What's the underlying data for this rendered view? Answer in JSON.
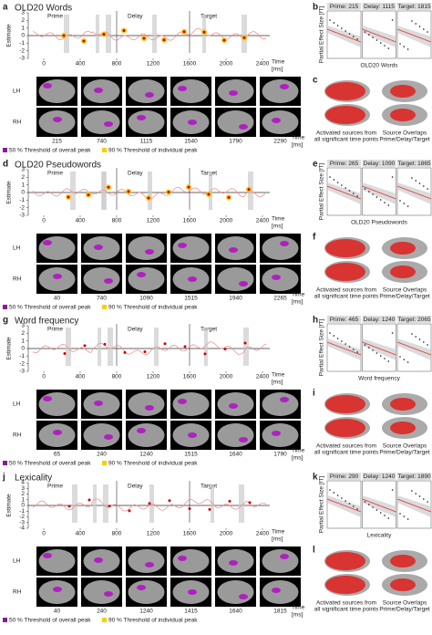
{
  "panels": [
    {
      "letter": "a",
      "title": "OLD20 Words",
      "y_label": "Estimate",
      "yticks": [
        "3",
        "2",
        "1",
        "0",
        "-1",
        "-2",
        "-3"
      ],
      "epochs": [
        "Prime",
        "Delay",
        "Target"
      ],
      "xticks": [
        "0",
        "400",
        "800",
        "1200",
        "1600",
        "2000",
        "2400"
      ],
      "time_label": [
        "Time",
        "[ms]"
      ],
      "hemispheres": [
        "LH",
        "RH"
      ],
      "brain_times": [
        "215",
        "740",
        "1115",
        "1540",
        "1790",
        "2290"
      ],
      "legend": [
        "50 % Threshold of overall peak",
        "90 % Threshold of individual peak"
      ],
      "effect_panel": {
        "letter": "b",
        "headers": [
          "Prime: 215",
          "Delay: 1115",
          "Target: 1815"
        ],
        "y_label": "Partial Effect Size [fT]",
        "x_label": "OLD20 Words"
      },
      "source_panel": {
        "letter": "c",
        "captions": [
          "Activated sources from all significant time points",
          "Source Overlaps Prime/Delay/Target"
        ]
      }
    },
    {
      "letter": "d",
      "title": "OLD20 Pseudowords",
      "y_label": "Estimate",
      "yticks": [
        "3",
        "2",
        "1",
        "0",
        "-1",
        "-2",
        "-3"
      ],
      "epochs": [
        "Prime",
        "Delay",
        "Target"
      ],
      "xticks": [
        "0",
        "400",
        "800",
        "1200",
        "1600",
        "2000",
        "2400"
      ],
      "time_label": [
        "Time",
        "[ms]"
      ],
      "hemispheres": [
        "LH",
        "RH"
      ],
      "brain_times": [
        "40",
        "740",
        "1090",
        "1515",
        "1940",
        "2265"
      ],
      "legend": [
        "50 % Threshold of overall peak",
        "90 % Threshold of individual peak"
      ],
      "effect_panel": {
        "letter": "e",
        "headers": [
          "Prime: 265",
          "Delay: 1090",
          "Target: 1865"
        ],
        "y_label": "Partial Effect Size [fT]",
        "x_label": "OLD20 Pseudowords"
      },
      "source_panel": {
        "letter": "f",
        "captions": [
          "Activated sources from all significant time points",
          "Source Overlaps Prime/Delay/Target"
        ]
      }
    },
    {
      "letter": "g",
      "title": "Word frequency",
      "y_label": "Estimate",
      "yticks": [
        "3",
        "2",
        "1",
        "0",
        "-1",
        "-2",
        "-3"
      ],
      "epochs": [
        "Prime",
        "Delay",
        "Target"
      ],
      "xticks": [
        "0",
        "400",
        "800",
        "1200",
        "1600",
        "2000",
        "2400"
      ],
      "time_label": [
        "Time",
        "[ms]"
      ],
      "hemispheres": [
        "LH",
        "RH"
      ],
      "brain_times": [
        "65",
        "240",
        "1240",
        "1515",
        "1640",
        "1790"
      ],
      "legend": [
        "50 % Threshold of overall peak",
        "90 % Threshold of individual peak"
      ],
      "effect_panel": {
        "letter": "h",
        "headers": [
          "Prime: 465",
          "Delay: 1240",
          "Target: 2065"
        ],
        "y_label": "Partial Effect Size [fT]",
        "x_label": "Word frequency"
      },
      "source_panel": {
        "letter": "i",
        "captions": [
          "Activated sources from all significant time points",
          "Source Overlaps Prime/Delay/Target"
        ]
      }
    },
    {
      "letter": "j",
      "title": "Lexicality",
      "y_label": "Estimate",
      "yticks": [
        "4",
        "3",
        "2",
        "1",
        "0",
        "-1",
        "-2",
        "-3",
        "-4"
      ],
      "epochs": [
        "Prime",
        "Delay",
        "Target"
      ],
      "xticks": [
        "0",
        "400",
        "800",
        "1200",
        "1600",
        "2000",
        "2400"
      ],
      "time_label": [
        "Time",
        "[ms]"
      ],
      "hemispheres": [
        "LH",
        "RH"
      ],
      "brain_times": [
        "40",
        "240",
        "1240",
        "1415",
        "1640",
        "1815"
      ],
      "legend": [
        "50 % Threshold of overall peak",
        "90 % Threshold of individual peak"
      ],
      "effect_panel": {
        "letter": "k",
        "headers": [
          "Prime: 290",
          "Delay: 1240",
          "Target: 1890"
        ],
        "y_label": "Partial Effect Size [fT]",
        "x_label": "Lexicality"
      },
      "source_panel": {
        "letter": "l",
        "captions": [
          "Activated sources from all significant time points",
          "Source Overlaps Prime/Delay/Target"
        ]
      }
    }
  ]
}
